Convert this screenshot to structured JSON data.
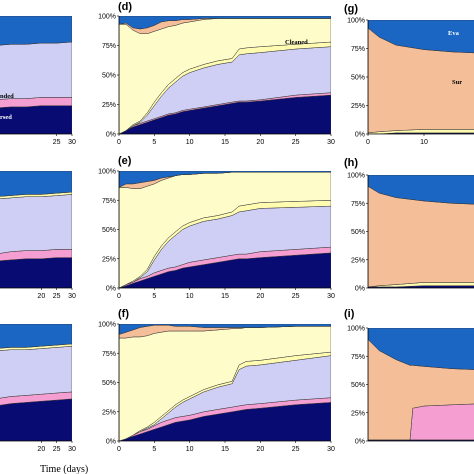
{
  "figure": {
    "xlabel": "Time (days)",
    "colors": {
      "evaporated": "#1a66c2",
      "surface": "#f4be98",
      "cleaned": "#fffcb2",
      "water_column": "#cfcff5",
      "stranded": "#f59ed2",
      "sedimented": "#070b72"
    }
  },
  "chart_data": [
    {
      "panel": "c-row1",
      "tag": "",
      "type": "area",
      "visible_x_ticks": [
        "25",
        "30"
      ],
      "y_ticks": [],
      "x": [
        0,
        5,
        10,
        15,
        20,
        25,
        30
      ],
      "series": [
        {
          "name": "Dispersed",
          "values": [
            22,
            22,
            23,
            23,
            24,
            24,
            24
          ]
        },
        {
          "name": "Stranded",
          "values": [
            6,
            7,
            7,
            7,
            7,
            7,
            7
          ]
        },
        {
          "name": "",
          "values": [
            47,
            46,
            46,
            46,
            46,
            46,
            47
          ]
        },
        {
          "name": "",
          "values": [
            25,
            25,
            24,
            24,
            23,
            23,
            22
          ]
        }
      ],
      "labels": [
        "nded",
        "rsed"
      ]
    },
    {
      "panel": "d",
      "tag": "(d)",
      "type": "area",
      "x_ticks": [
        "0",
        "5",
        "10",
        "15",
        "20",
        "25",
        "30"
      ],
      "y_ticks": [
        "0%",
        "25%",
        "50%",
        "75%",
        "100%"
      ],
      "x": [
        0,
        1,
        2,
        3,
        4,
        5,
        6,
        7,
        8,
        9,
        10,
        12,
        14,
        16,
        17,
        18,
        20,
        25,
        30
      ],
      "series": [
        {
          "name": "",
          "values": [
            0,
            3,
            6,
            8,
            10,
            12,
            14,
            16,
            17,
            19,
            20,
            22,
            24,
            26,
            27,
            27,
            28,
            31,
            33
          ]
        },
        {
          "name": "",
          "values": [
            0,
            0,
            1,
            1,
            1,
            1,
            1,
            1,
            1,
            1,
            1,
            1,
            1,
            1,
            1,
            1,
            1,
            2,
            2
          ]
        },
        {
          "name": "",
          "values": [
            0,
            0,
            0,
            1,
            5,
            11,
            17,
            22,
            26,
            29,
            31,
            33,
            34,
            34,
            39,
            40,
            40,
            39,
            39
          ]
        },
        {
          "name": "Cleaned",
          "values": [
            0,
            0,
            1,
            1,
            2,
            3,
            3,
            3,
            3,
            3,
            3,
            3,
            3,
            3,
            5,
            5,
            5,
            4,
            4
          ]
        },
        {
          "name": "",
          "values": [
            93,
            90,
            80,
            74,
            67,
            60,
            54,
            49,
            45,
            42,
            40,
            38,
            36,
            34,
            26,
            25,
            24,
            22,
            20
          ]
        },
        {
          "name": "",
          "values": [
            0,
            1,
            2,
            4,
            5,
            5,
            6,
            5,
            4,
            3,
            2,
            1,
            0,
            0,
            0,
            0,
            0,
            0,
            0
          ]
        },
        {
          "name": "",
          "values": [
            7,
            6,
            10,
            11,
            10,
            8,
            5,
            4,
            4,
            3,
            3,
            2,
            2,
            2,
            2,
            2,
            2,
            2,
            2
          ]
        }
      ],
      "labels": [
        "Cleaned"
      ]
    },
    {
      "panel": "g",
      "tag": "(g)",
      "type": "area",
      "visible_x_ticks": [
        "0",
        "10"
      ],
      "y_ticks": [
        "0%",
        "25%",
        "50%",
        "75%",
        "100%"
      ],
      "x": [
        0,
        2,
        5,
        10,
        15,
        20
      ],
      "series": [
        {
          "name": "",
          "values": [
            0,
            0,
            1,
            1,
            1,
            1
          ]
        },
        {
          "name": "",
          "values": [
            1,
            2,
            2,
            3,
            3,
            3
          ]
        },
        {
          "name": "Sur",
          "values": [
            92,
            83,
            75,
            70,
            68,
            67
          ]
        },
        {
          "name": "Eva",
          "values": [
            7,
            15,
            22,
            26,
            28,
            29
          ]
        }
      ],
      "labels": [
        "Eva",
        "Sur"
      ]
    },
    {
      "panel": "c-row2",
      "tag": "",
      "type": "area",
      "visible_x_ticks": [
        "20",
        "25",
        "30"
      ],
      "y_ticks": [],
      "x": [
        0,
        5,
        10,
        15,
        20,
        25,
        30
      ],
      "series": [
        {
          "name": "",
          "values": [
            22,
            23,
            24,
            25,
            25,
            26,
            26
          ]
        },
        {
          "name": "",
          "values": [
            6,
            6,
            7,
            7,
            7,
            7,
            7
          ]
        },
        {
          "name": "",
          "values": [
            48,
            47,
            46,
            46,
            46,
            46,
            47
          ]
        },
        {
          "name": "",
          "values": [
            2,
            2,
            2,
            2,
            2,
            2,
            2
          ]
        },
        {
          "name": "",
          "values": [
            22,
            22,
            21,
            20,
            20,
            19,
            18
          ]
        }
      ],
      "labels": []
    },
    {
      "panel": "e",
      "tag": "(e)",
      "type": "area",
      "x_ticks": [
        "0",
        "5",
        "10",
        "15",
        "20",
        "25",
        "30"
      ],
      "y_ticks": [
        "0%",
        "25%",
        "50%",
        "75%",
        "100%"
      ],
      "x": [
        0,
        1,
        2,
        3,
        4,
        5,
        6,
        7,
        8,
        9,
        10,
        12,
        14,
        16,
        17,
        18,
        20,
        25,
        30
      ],
      "series": [
        {
          "name": "",
          "values": [
            0,
            2,
            4,
            6,
            8,
            10,
            12,
            14,
            15,
            17,
            18,
            20,
            22,
            24,
            25,
            25,
            26,
            28,
            30
          ]
        },
        {
          "name": "",
          "values": [
            0,
            1,
            1,
            2,
            2,
            3,
            3,
            3,
            3,
            3,
            4,
            4,
            4,
            4,
            4,
            4,
            5,
            5,
            5
          ]
        },
        {
          "name": "",
          "values": [
            0,
            0,
            0,
            1,
            4,
            11,
            18,
            23,
            27,
            30,
            31,
            33,
            33,
            34,
            36,
            37,
            37,
            36,
            35
          ]
        },
        {
          "name": "",
          "values": [
            0,
            0,
            1,
            1,
            2,
            3,
            3,
            3,
            3,
            3,
            3,
            3,
            3,
            3,
            5,
            5,
            5,
            5,
            5
          ]
        },
        {
          "name": "",
          "values": [
            86,
            83,
            79,
            75,
            71,
            62,
            56,
            51,
            48,
            44,
            41,
            38,
            36,
            34,
            29,
            28,
            26,
            25,
            24
          ]
        },
        {
          "name": "",
          "values": [
            0,
            3,
            4,
            5,
            4,
            3,
            2,
            1,
            0,
            0,
            0,
            0,
            0,
            0,
            0,
            0,
            0,
            0,
            0
          ]
        },
        {
          "name": "",
          "values": [
            14,
            11,
            11,
            10,
            9,
            8,
            6,
            5,
            4,
            3,
            3,
            2,
            2,
            1,
            1,
            1,
            1,
            1,
            1
          ]
        }
      ],
      "labels": []
    },
    {
      "panel": "h",
      "tag": "(h)",
      "type": "area",
      "y_ticks": [
        "0%",
        "25%",
        "50%",
        "75%",
        "100%"
      ],
      "x": [
        0,
        2,
        5,
        10,
        15,
        20
      ],
      "series": [
        {
          "name": "",
          "values": [
            1,
            1,
            1,
            2,
            2,
            2
          ]
        },
        {
          "name": "",
          "values": [
            0,
            1,
            2,
            3,
            3,
            3
          ]
        },
        {
          "name": "",
          "values": [
            89,
            82,
            77,
            72,
            70,
            69
          ]
        },
        {
          "name": "",
          "values": [
            10,
            16,
            20,
            23,
            25,
            26
          ]
        }
      ],
      "labels": []
    },
    {
      "panel": "c-row3",
      "tag": "",
      "type": "area",
      "visible_x_ticks": [
        "20",
        "25",
        "30"
      ],
      "y_ticks": [],
      "x": [
        0,
        5,
        10,
        15,
        20,
        25,
        30
      ],
      "series": [
        {
          "name": "",
          "values": [
            28,
            30,
            32,
            33,
            34,
            35,
            36
          ]
        },
        {
          "name": "",
          "values": [
            6,
            6,
            6,
            6,
            6,
            6,
            6
          ]
        },
        {
          "name": "",
          "values": [
            43,
            41,
            40,
            39,
            39,
            39,
            39
          ]
        },
        {
          "name": "",
          "values": [
            2,
            2,
            2,
            2,
            2,
            2,
            2
          ]
        },
        {
          "name": "",
          "values": [
            21,
            21,
            20,
            20,
            19,
            18,
            17
          ]
        }
      ],
      "labels": []
    },
    {
      "panel": "f",
      "tag": "(f)",
      "type": "area",
      "x_ticks": [
        "0",
        "5",
        "10",
        "15",
        "20",
        "25",
        "30"
      ],
      "y_ticks": [
        "0%",
        "25%",
        "50%",
        "75%",
        "100%"
      ],
      "x": [
        0,
        1,
        2,
        3,
        4,
        5,
        6,
        7,
        8,
        9,
        10,
        12,
        14,
        16,
        17,
        18,
        20,
        25,
        30
      ],
      "series": [
        {
          "name": "",
          "values": [
            0,
            2,
            4,
            6,
            8,
            10,
            12,
            14,
            16,
            17,
            18,
            21,
            23,
            25,
            26,
            27,
            28,
            31,
            33
          ]
        },
        {
          "name": "",
          "values": [
            0,
            0,
            1,
            2,
            2,
            3,
            4,
            4,
            4,
            4,
            4,
            4,
            4,
            4,
            4,
            4,
            4,
            4,
            4
          ]
        },
        {
          "name": "",
          "values": [
            0,
            0,
            0,
            0,
            1,
            1,
            3,
            6,
            9,
            12,
            14,
            17,
            19,
            20,
            31,
            33,
            33,
            34,
            36
          ]
        },
        {
          "name": "",
          "values": [
            0,
            0,
            0,
            1,
            1,
            2,
            2,
            2,
            2,
            2,
            2,
            2,
            2,
            2,
            4,
            4,
            4,
            4,
            3
          ]
        },
        {
          "name": "",
          "values": [
            88,
            86,
            84,
            80,
            78,
            76,
            72,
            68,
            63,
            59,
            56,
            50,
            47,
            45,
            31,
            29,
            28,
            25,
            22
          ]
        },
        {
          "name": "",
          "values": [
            3,
            5,
            6,
            8,
            8,
            7,
            6,
            5,
            4,
            4,
            4,
            3,
            2,
            1,
            1,
            0,
            0,
            0,
            0
          ]
        },
        {
          "name": "",
          "values": [
            9,
            7,
            5,
            3,
            2,
            1,
            1,
            1,
            2,
            2,
            2,
            3,
            3,
            3,
            3,
            3,
            3,
            2,
            2
          ]
        }
      ],
      "labels": []
    },
    {
      "panel": "i",
      "tag": "(i)",
      "type": "area",
      "y_ticks": [
        "0%",
        "25%",
        "50%",
        "75%",
        "100%"
      ],
      "x": [
        0,
        2,
        5,
        7.5,
        8,
        10,
        15,
        20
      ],
      "series": [
        {
          "name": "",
          "values": [
            1,
            1,
            1,
            1,
            1,
            1,
            1,
            1
          ]
        },
        {
          "name": "",
          "values": [
            0,
            0,
            0,
            0,
            28,
            30,
            31,
            32
          ]
        },
        {
          "name": "",
          "values": [
            89,
            79,
            71,
            66,
            38,
            35,
            32,
            30
          ]
        },
        {
          "name": "",
          "values": [
            10,
            20,
            28,
            33,
            33,
            34,
            36,
            37
          ]
        }
      ],
      "labels": []
    }
  ]
}
